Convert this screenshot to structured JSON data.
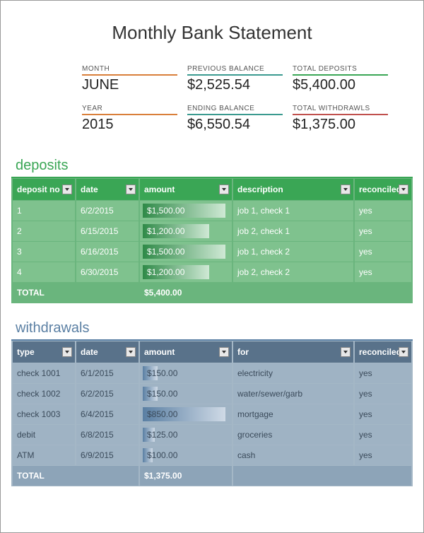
{
  "title": "Monthly Bank Statement",
  "summary": {
    "row1": [
      {
        "label": "MONTH",
        "value": "JUNE",
        "underline": "underline-orange"
      },
      {
        "label": "PREVIOUS BALANCE",
        "value": "$2,525.54",
        "underline": "underline-teal"
      },
      {
        "label": "TOTAL DEPOSITS",
        "value": "$5,400.00",
        "underline": "underline-green"
      }
    ],
    "row2": [
      {
        "label": "YEAR",
        "value": "2015",
        "underline": "underline-orange"
      },
      {
        "label": "ENDING BALANCE",
        "value": "$6,550.54",
        "underline": "underline-teal"
      },
      {
        "label": "TOTAL WITHDRAWLS",
        "value": "$1,375.00",
        "underline": "underline-red"
      }
    ]
  },
  "deposits": {
    "title": "deposits",
    "title_color": "#3aa655",
    "header_bg": "#3aa655",
    "row_bg": "#7fc28e",
    "bar_class": "bar-green",
    "max_amount": 1500,
    "headers": [
      "deposit no",
      "date",
      "amount",
      "description",
      "reconciled"
    ],
    "rows": [
      {
        "c1": "1",
        "date": "6/2/2015",
        "amount": "$1,500.00",
        "raw": 1500,
        "desc": "job 1, check 1",
        "rec": "yes"
      },
      {
        "c1": "2",
        "date": "6/15/2015",
        "amount": "$1,200.00",
        "raw": 1200,
        "desc": "job 2, check 1",
        "rec": "yes"
      },
      {
        "c1": "3",
        "date": "6/16/2015",
        "amount": "$1,500.00",
        "raw": 1500,
        "desc": "job 1, check 2",
        "rec": "yes"
      },
      {
        "c1": "4",
        "date": "6/30/2015",
        "amount": "$1,200.00",
        "raw": 1200,
        "desc": "job 2, check 2",
        "rec": "yes"
      }
    ],
    "total_label": "TOTAL",
    "total": "$5,400.00"
  },
  "withdrawals": {
    "title": "withdrawals",
    "title_color": "#5a7fa3",
    "header_bg": "#59728a",
    "row_bg": "#9fb3c4",
    "bar_class": "bar-blue",
    "max_amount": 850,
    "headers": [
      "type",
      "date",
      "amount",
      "for",
      "reconciled"
    ],
    "rows": [
      {
        "c1": "check 1001",
        "date": "6/1/2015",
        "amount": "$150.00",
        "raw": 150,
        "desc": "electricity",
        "rec": "yes"
      },
      {
        "c1": "check 1002",
        "date": "6/2/2015",
        "amount": "$150.00",
        "raw": 150,
        "desc": "water/sewer/garbage",
        "rec": "yes",
        "truncate": "water/sewer/garb"
      },
      {
        "c1": "check 1003",
        "date": "6/4/2015",
        "amount": "$850.00",
        "raw": 850,
        "desc": "mortgage",
        "rec": "yes"
      },
      {
        "c1": "debit",
        "date": "6/8/2015",
        "amount": "$125.00",
        "raw": 125,
        "desc": "groceries",
        "rec": "yes"
      },
      {
        "c1": "ATM",
        "date": "6/9/2015",
        "amount": "$100.00",
        "raw": 100,
        "desc": "cash",
        "rec": "yes"
      }
    ],
    "total_label": "TOTAL",
    "total": "$1,375.00"
  }
}
